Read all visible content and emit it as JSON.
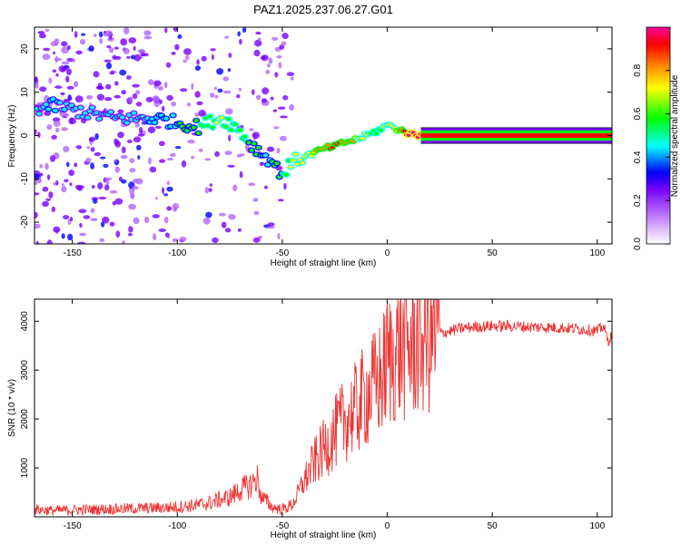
{
  "title": "PAZ1.2025.237.06.27.G01",
  "chart_data": [
    {
      "type": "heatmap",
      "xlabel": "Height of straight line (km)",
      "ylabel": "Frequency (Hz)",
      "xlim": [
        -168,
        107
      ],
      "ylim": [
        -25,
        25
      ],
      "x_ticks": [
        -150,
        -100,
        -50,
        0,
        50,
        100
      ],
      "y_ticks": [
        -20,
        -10,
        0,
        10,
        20
      ],
      "colorbar": {
        "label": "Normalized spectral amplitude",
        "range": [
          0,
          1
        ],
        "ticks": [
          0.0,
          0.2,
          0.4,
          0.6,
          0.8
        ],
        "colormap": [
          "#ffffff",
          "#e6ccff",
          "#b266ff",
          "#7700ff",
          "#0000ff",
          "#00ffff",
          "#00ff00",
          "#ffff00",
          "#ff8800",
          "#ff0000",
          "#ff0099"
        ]
      },
      "ridge": {
        "x": [
          -168,
          -160,
          -150,
          -140,
          -130,
          -120,
          -110,
          -100,
          -90,
          -80,
          -75,
          -70,
          -65,
          -60,
          -55,
          -50,
          -45,
          -40,
          -35,
          -30,
          -25,
          -20,
          -15,
          -10,
          -5,
          0,
          5,
          10,
          15,
          20,
          50,
          100,
          107
        ],
        "freq": [
          6,
          7,
          6,
          5,
          4,
          4,
          4,
          3,
          2,
          4,
          3,
          1,
          -2,
          -4,
          -6,
          -9,
          -6,
          -5,
          -4,
          -3,
          -2.5,
          -1.5,
          -1,
          0,
          1,
          2.5,
          1.5,
          0.5,
          0,
          0,
          0,
          0,
          0
        ],
        "amplitude": [
          0.35,
          0.4,
          0.35,
          0.35,
          0.35,
          0.35,
          0.4,
          0.45,
          0.5,
          0.6,
          0.55,
          0.55,
          0.5,
          0.45,
          0.45,
          0.5,
          0.6,
          0.65,
          0.7,
          0.8,
          0.85,
          0.8,
          0.7,
          0.6,
          0.55,
          0.6,
          0.7,
          0.95,
          1,
          1,
          1,
          1,
          1
        ]
      },
      "noise_region_x": [
        -168,
        -45
      ]
    },
    {
      "type": "line",
      "xlabel": "Height of straight line (km)",
      "ylabel": "SNR (10 * v/v)",
      "xlim": [
        -168,
        107
      ],
      "ylim": [
        0,
        4450
      ],
      "x_ticks": [
        -150,
        -100,
        -50,
        0,
        50,
        100
      ],
      "y_ticks": [
        1000,
        2000,
        3000,
        4000
      ],
      "series": [
        {
          "color": "#ee3333",
          "x": [
            -168,
            -160,
            -150,
            -140,
            -130,
            -120,
            -110,
            -100,
            -95,
            -90,
            -85,
            -80,
            -75,
            -70,
            -65,
            -62,
            -60,
            -57,
            -55,
            -50,
            -45,
            -40,
            -35,
            -30,
            -25,
            -20,
            -15,
            -10,
            -5,
            -2,
            0,
            3,
            5,
            10,
            15,
            20,
            25,
            30,
            35,
            40,
            50,
            60,
            70,
            80,
            90,
            100,
            103,
            105,
            107
          ],
          "y": [
            150,
            130,
            140,
            150,
            160,
            170,
            180,
            200,
            220,
            240,
            280,
            350,
            400,
            550,
            650,
            800,
            400,
            300,
            200,
            150,
            250,
            700,
            1100,
            1400,
            1700,
            2000,
            2200,
            2500,
            2700,
            2900,
            3200,
            3300,
            3400,
            3450,
            3600,
            3700,
            3750,
            3800,
            3850,
            3880,
            3900,
            3900,
            3880,
            3870,
            3850,
            3800,
            3900,
            3600,
            3700
          ]
        }
      ]
    }
  ]
}
